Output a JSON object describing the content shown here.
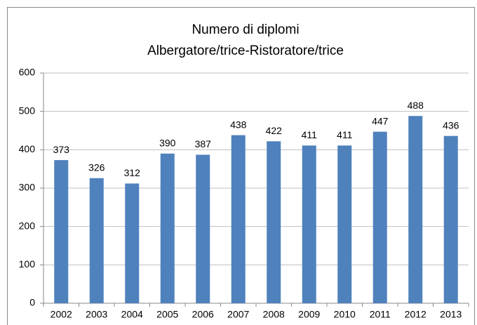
{
  "chart_data": {
    "type": "bar",
    "title": [
      "Numero di diplomi",
      "Albergatore/trice-Ristoratore/trice"
    ],
    "categories": [
      "2002",
      "2003",
      "2004",
      "2005",
      "2006",
      "2007",
      "2008",
      "2009",
      "2010",
      "2011",
      "2012",
      "2013"
    ],
    "values": [
      373,
      326,
      312,
      390,
      387,
      438,
      422,
      411,
      411,
      447,
      488,
      436
    ],
    "color": "#4f81bd",
    "ylim": [
      0,
      600
    ],
    "yticks": [
      0,
      100,
      200,
      300,
      400,
      500,
      600
    ],
    "grid": true
  }
}
